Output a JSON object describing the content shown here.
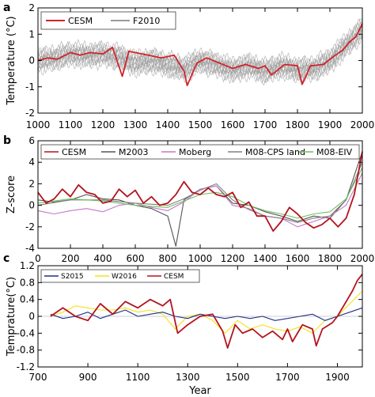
{
  "figure": {
    "panels": [
      {
        "letter": "a",
        "type": "line",
        "xlim": [
          1000,
          2000
        ],
        "ylim": [
          -2,
          2
        ],
        "xticks": [
          1000,
          1100,
          1200,
          1300,
          1400,
          1500,
          1600,
          1700,
          1800,
          1900,
          2000
        ],
        "yticks": [
          -2,
          -1,
          0,
          1,
          2
        ],
        "xlabel": "",
        "ylabel": "Temperature (°C)",
        "legend": {
          "placement": "top-left",
          "entries": [
            "CESM",
            "F2010"
          ]
        },
        "series": [
          {
            "name": "F2010",
            "color": "#9a9a9a",
            "kind": "ensemble",
            "x": [
              1000,
              1050,
              1100,
              1150,
              1200,
              1250,
              1300,
              1350,
              1400,
              1450,
              1500,
              1550,
              1600,
              1650,
              1700,
              1750,
              1800,
              1850,
              1900,
              1950,
              2000
            ],
            "y": [
              0.0,
              0.1,
              0.25,
              0.2,
              0.25,
              0.15,
              -0.1,
              0.0,
              -0.15,
              -0.3,
              0.0,
              -0.15,
              -0.35,
              -0.2,
              -0.4,
              -0.2,
              -0.35,
              -0.3,
              0.0,
              0.6,
              1.2
            ]
          },
          {
            "name": "CESM",
            "color": "#d1232a",
            "kind": "line",
            "x": [
              1000,
              1030,
              1060,
              1100,
              1130,
              1160,
              1200,
              1230,
              1260,
              1280,
              1300,
              1340,
              1380,
              1420,
              1450,
              1460,
              1490,
              1520,
              1560,
              1600,
              1640,
              1680,
              1700,
              1720,
              1760,
              1800,
              1815,
              1840,
              1880,
              1900,
              1940,
              1960,
              1980,
              2000
            ],
            "y": [
              0.0,
              0.1,
              0.05,
              0.3,
              0.2,
              0.3,
              0.25,
              0.5,
              -0.6,
              0.35,
              0.3,
              0.2,
              0.1,
              0.2,
              -0.4,
              -0.95,
              -0.1,
              0.1,
              -0.1,
              -0.3,
              -0.15,
              -0.3,
              -0.2,
              -0.55,
              -0.15,
              -0.2,
              -0.9,
              -0.2,
              -0.15,
              0.05,
              0.4,
              0.7,
              0.9,
              1.4
            ]
          }
        ]
      },
      {
        "letter": "b",
        "type": "line",
        "xlim": [
          0,
          2000
        ],
        "ylim": [
          -4,
          6
        ],
        "xticks": [
          0,
          200,
          400,
          600,
          800,
          1000,
          1200,
          1400,
          1600,
          1800,
          2000
        ],
        "yticks": [
          -4,
          -2,
          0,
          2,
          4,
          6
        ],
        "xlabel": "",
        "ylabel": "Z-score",
        "legend": {
          "placement": "top",
          "entries": [
            "CESM",
            "M2003",
            "Moberg",
            "M08-CPS land",
            "M08-EIV"
          ]
        },
        "series": [
          {
            "name": "M2003",
            "color": "#555555",
            "x": [
              0,
              100,
              200,
              300,
              400,
              500,
              600,
              700,
              800,
              850,
              900,
              1000,
              1100,
              1200,
              1300,
              1400,
              1500,
              1600,
              1700,
              1800,
              1900,
              2000
            ],
            "y": [
              0.5,
              0.3,
              0.5,
              1.0,
              0.6,
              0.5,
              0.0,
              -0.3,
              -1.0,
              -3.8,
              0.5,
              1.5,
              1.8,
              0.2,
              0.0,
              -0.6,
              -1.0,
              -1.5,
              -1.0,
              -1.2,
              0.5,
              5.0
            ]
          },
          {
            "name": "Moberg",
            "color": "#c777c7",
            "x": [
              0,
              100,
              200,
              300,
              400,
              500,
              600,
              700,
              800,
              900,
              1000,
              1100,
              1200,
              1300,
              1400,
              1500,
              1600,
              1700,
              1800,
              1900,
              2000
            ],
            "y": [
              -0.5,
              -0.8,
              -0.5,
              -0.3,
              -0.6,
              0.0,
              0.2,
              -0.2,
              -0.5,
              0.3,
              1.5,
              1.8,
              0.0,
              -0.3,
              -1.0,
              -1.2,
              -2.0,
              -1.5,
              -1.0,
              0.0,
              3.0
            ]
          },
          {
            "name": "M08-CPS land",
            "color": "#808080",
            "x": [
              0,
              200,
              400,
              600,
              800,
              900,
              1000,
              1100,
              1200,
              1300,
              1400,
              1500,
              1600,
              1700,
              1800,
              1900,
              2000
            ],
            "y": [
              0.0,
              0.5,
              0.5,
              0.2,
              0.0,
              0.6,
              1.4,
              2.0,
              0.5,
              -0.4,
              -1.0,
              -1.2,
              -1.6,
              -1.2,
              -1.0,
              0.5,
              4.0
            ]
          },
          {
            "name": "M08-EIV",
            "color": "#6dbf5c",
            "x": [
              0,
              200,
              400,
              600,
              800,
              900,
              1000,
              1100,
              1200,
              1300,
              1400,
              1500,
              1600,
              1700,
              1800,
              1900,
              2000
            ],
            "y": [
              0.2,
              0.6,
              0.4,
              0.0,
              -0.2,
              0.4,
              1.0,
              1.2,
              0.8,
              0.0,
              -0.5,
              -0.8,
              -1.2,
              -0.8,
              -0.6,
              0.6,
              3.5
            ]
          },
          {
            "name": "CESM",
            "color": "#b3141d",
            "x": [
              0,
              50,
              100,
              150,
              200,
              250,
              300,
              350,
              400,
              450,
              500,
              550,
              600,
              650,
              700,
              750,
              800,
              850,
              900,
              950,
              1000,
              1050,
              1100,
              1150,
              1200,
              1250,
              1300,
              1350,
              1400,
              1450,
              1500,
              1550,
              1600,
              1650,
              1700,
              1750,
              1800,
              1850,
              1900,
              1950,
              2000
            ],
            "y": [
              1.2,
              0.2,
              0.6,
              1.5,
              0.8,
              1.9,
              1.2,
              1.0,
              0.2,
              0.4,
              1.5,
              0.8,
              1.4,
              0.2,
              0.8,
              0.0,
              0.2,
              1.0,
              2.2,
              1.2,
              1.0,
              1.6,
              1.0,
              0.8,
              1.2,
              -0.2,
              0.3,
              -1.0,
              -1.0,
              -2.4,
              -1.5,
              -0.2,
              -0.8,
              -1.6,
              -2.1,
              -1.8,
              -1.2,
              -2.0,
              -1.2,
              1.0,
              5.0
            ]
          }
        ]
      },
      {
        "letter": "c",
        "type": "line",
        "xlim": [
          700,
          2000
        ],
        "ylim": [
          -1.2,
          1.2
        ],
        "xticks": [
          700,
          900,
          1100,
          1300,
          1500,
          1700,
          1900
        ],
        "yticks": [
          -1.2,
          -0.8,
          -0.4,
          0,
          0.4,
          0.8,
          1.2
        ],
        "xlabel": "Year",
        "ylabel": "Temprature(°C)",
        "legend": {
          "placement": "top-left",
          "entries": [
            "S2015",
            "W2016",
            "CESM"
          ]
        },
        "series": [
          {
            "name": "W2016",
            "color": "#f3e21a",
            "x": [
              750,
              800,
              850,
              900,
              950,
              1000,
              1050,
              1100,
              1150,
              1200,
              1250,
              1300,
              1350,
              1400,
              1450,
              1500,
              1550,
              1600,
              1650,
              1700,
              1750,
              1800,
              1850,
              1900,
              1950,
              2000
            ],
            "y": [
              0.0,
              0.1,
              0.25,
              0.2,
              0.15,
              0.15,
              0.2,
              0.1,
              0.15,
              0.05,
              -0.3,
              0.0,
              0.05,
              -0.1,
              -0.4,
              -0.1,
              -0.3,
              -0.2,
              -0.3,
              -0.35,
              -0.25,
              -0.4,
              -0.1,
              0.0,
              0.3,
              0.6
            ]
          },
          {
            "name": "S2015",
            "color": "#1f2f8a",
            "x": [
              750,
              800,
              850,
              900,
              950,
              1000,
              1050,
              1100,
              1150,
              1200,
              1250,
              1300,
              1350,
              1400,
              1450,
              1500,
              1550,
              1600,
              1650,
              1700,
              1750,
              1800,
              1850,
              1900,
              1950,
              2000
            ],
            "y": [
              0.05,
              -0.05,
              0.0,
              0.1,
              -0.05,
              0.05,
              0.15,
              0.0,
              0.05,
              0.1,
              0.0,
              -0.05,
              0.05,
              0.0,
              -0.05,
              0.0,
              -0.05,
              0.0,
              -0.1,
              -0.05,
              0.0,
              0.05,
              -0.1,
              0.0,
              0.1,
              0.2
            ]
          },
          {
            "name": "CESM",
            "color": "#b3141d",
            "x": [
              750,
              800,
              850,
              900,
              950,
              1000,
              1050,
              1100,
              1150,
              1200,
              1230,
              1260,
              1300,
              1350,
              1400,
              1440,
              1460,
              1490,
              1520,
              1560,
              1600,
              1640,
              1680,
              1700,
              1720,
              1760,
              1800,
              1815,
              1840,
              1880,
              1900,
              1940,
              1960,
              1980,
              2000
            ],
            "y": [
              0.0,
              0.2,
              0.0,
              -0.1,
              0.3,
              0.05,
              0.35,
              0.2,
              0.4,
              0.25,
              0.4,
              -0.4,
              -0.2,
              0.0,
              0.05,
              -0.35,
              -0.75,
              -0.2,
              -0.4,
              -0.3,
              -0.5,
              -0.35,
              -0.55,
              -0.3,
              -0.6,
              -0.2,
              -0.3,
              -0.7,
              -0.3,
              -0.15,
              0.0,
              0.4,
              0.6,
              0.85,
              1.0
            ]
          }
        ]
      }
    ]
  }
}
